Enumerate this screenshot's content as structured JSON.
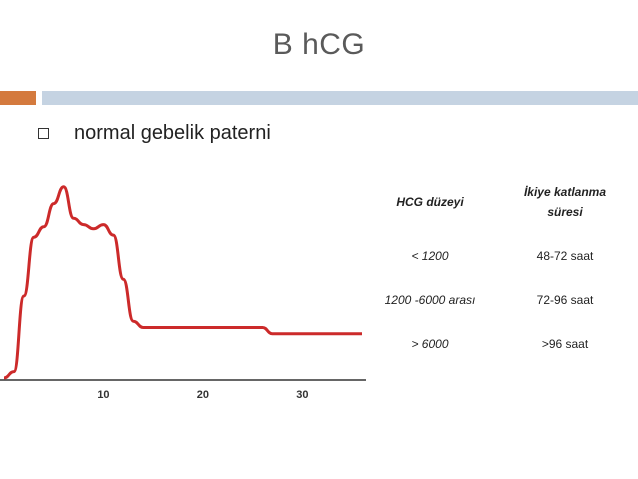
{
  "title": "B hCG",
  "bullet": {
    "text": "normal gebelik paterni"
  },
  "chart_data": {
    "type": "line",
    "title": "",
    "xlabel": "",
    "ylabel": "",
    "xlim": [
      0,
      36
    ],
    "ylim": [
      0,
      100
    ],
    "xticks": [
      "10",
      "20",
      "30"
    ],
    "xtick_values": [
      10,
      20,
      30
    ],
    "grid": false,
    "series": [
      {
        "color": "#cc2a2a",
        "x": [
          0,
          1,
          2,
          3,
          4,
          5,
          6,
          7,
          8,
          9,
          10,
          11,
          12,
          13,
          14,
          15,
          16,
          17,
          18,
          20,
          22,
          24,
          26,
          27,
          28,
          30,
          32,
          34,
          36
        ],
        "y": [
          1,
          4,
          40,
          68,
          73,
          84,
          92,
          77,
          74,
          72,
          74,
          69,
          48,
          28,
          25,
          25,
          25,
          25,
          25,
          25,
          25,
          25,
          25,
          22,
          22,
          22,
          22,
          22,
          22
        ]
      }
    ]
  },
  "table": {
    "header": {
      "col1": "HCG düzeyi",
      "col2_line1": "İkiye katlanma",
      "col2_line2": "süresi"
    },
    "rows": [
      {
        "level": "< 1200",
        "time": "48-72 saat"
      },
      {
        "level": "1200 -6000 arası",
        "time": "72-96 saat"
      },
      {
        "level": "> 6000",
        "time": ">96 saat"
      }
    ]
  },
  "colors": {
    "accent": "#d47a3e",
    "rule": "#c5d3e2",
    "curve": "#cc2a2a",
    "title": "#5a5a5a"
  }
}
